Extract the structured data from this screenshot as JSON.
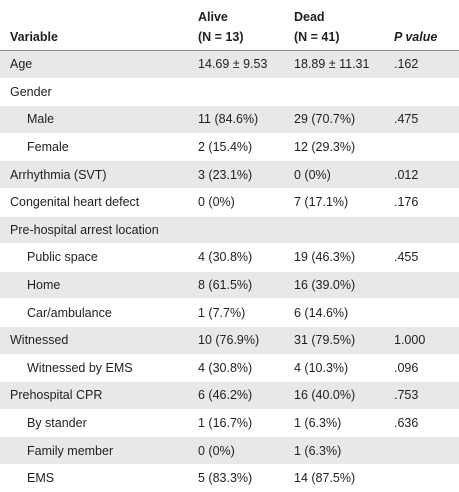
{
  "table": {
    "header": {
      "variable_label": "Variable",
      "alive_label": "Alive",
      "alive_n": "(N = 13)",
      "dead_label": "Dead",
      "dead_n": "(N = 41)",
      "p_label": "P value"
    },
    "rows": [
      {
        "variable": "Age",
        "alive": "14.69 ± 9.53",
        "dead": "18.89 ± 11.31",
        "p": ".162",
        "indent": false,
        "shaded": true
      },
      {
        "variable": "Gender",
        "alive": "",
        "dead": "",
        "p": "",
        "indent": false,
        "shaded": false
      },
      {
        "variable": "Male",
        "alive": "11 (84.6%)",
        "dead": "29 (70.7%)",
        "p": ".475",
        "indent": true,
        "shaded": true
      },
      {
        "variable": "Female",
        "alive": "2 (15.4%)",
        "dead": "12 (29.3%)",
        "p": "",
        "indent": true,
        "shaded": false
      },
      {
        "variable": "Arrhythmia (SVT)",
        "alive": "3 (23.1%)",
        "dead": "0 (0%)",
        "p": ".012",
        "indent": false,
        "shaded": true
      },
      {
        "variable": "Congenital heart defect",
        "alive": "0 (0%)",
        "dead": "7 (17.1%)",
        "p": ".176",
        "indent": false,
        "shaded": false
      },
      {
        "variable": "Pre-hospital arrest location",
        "alive": "",
        "dead": "",
        "p": "",
        "indent": false,
        "shaded": true
      },
      {
        "variable": "Public space",
        "alive": "4 (30.8%)",
        "dead": "19 (46.3%)",
        "p": ".455",
        "indent": true,
        "shaded": false
      },
      {
        "variable": "Home",
        "alive": "8 (61.5%)",
        "dead": "16 (39.0%)",
        "p": "",
        "indent": true,
        "shaded": true
      },
      {
        "variable": "Car/ambulance",
        "alive": "1 (7.7%)",
        "dead": "6 (14.6%)",
        "p": "",
        "indent": true,
        "shaded": false
      },
      {
        "variable": "Witnessed",
        "alive": "10 (76.9%)",
        "dead": "31 (79.5%)",
        "p": "1.000",
        "indent": false,
        "shaded": true
      },
      {
        "variable": "Witnessed by EMS",
        "alive": "4 (30.8%)",
        "dead": "4 (10.3%)",
        "p": ".096",
        "indent": true,
        "shaded": false
      },
      {
        "variable": "Prehospital CPR",
        "alive": "6 (46.2%)",
        "dead": "16 (40.0%)",
        "p": ".753",
        "indent": false,
        "shaded": true
      },
      {
        "variable": "By stander",
        "alive": "1 (16.7%)",
        "dead": "1 (6.3%)",
        "p": ".636",
        "indent": true,
        "shaded": false
      },
      {
        "variable": "Family member",
        "alive": "0 (0%)",
        "dead": "1 (6.3%)",
        "p": "",
        "indent": true,
        "shaded": true
      },
      {
        "variable": "EMS",
        "alive": "5 (83.3%)",
        "dead": "14 (87.5%)",
        "p": "",
        "indent": true,
        "shaded": false
      }
    ]
  }
}
